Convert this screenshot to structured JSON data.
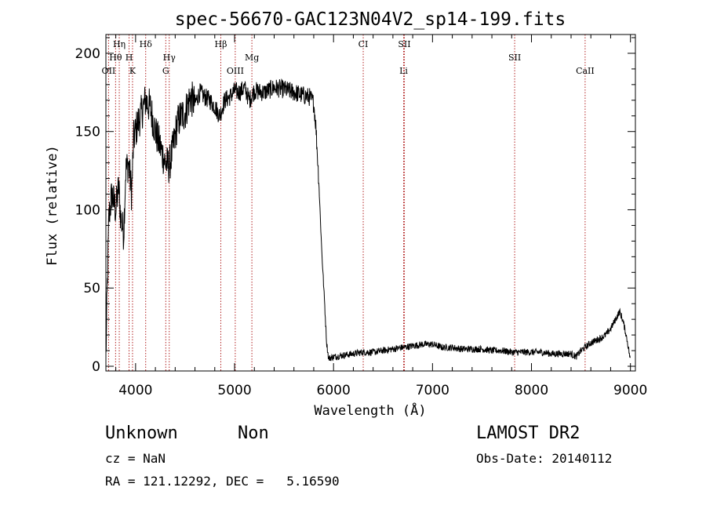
{
  "chart_data": {
    "type": "line",
    "title": "spec-56670-GAC123N04V2_sp14-199.fits",
    "xlabel": "Wavelength (Å)",
    "ylabel": "Flux (relative)",
    "xlim": [
      3700,
      9050
    ],
    "ylim": [
      -3,
      212
    ],
    "x_ticks": [
      4000,
      5000,
      6000,
      7000,
      8000,
      9000
    ],
    "y_ticks": [
      0,
      50,
      100,
      150,
      200
    ],
    "grid": false,
    "line_color": "#000000",
    "marker_color": "#b22222",
    "spectrum_anchors": [
      [
        3700,
        5
      ],
      [
        3710,
        38
      ],
      [
        3730,
        95
      ],
      [
        3760,
        110
      ],
      [
        3800,
        100
      ],
      [
        3830,
        115
      ],
      [
        3850,
        95
      ],
      [
        3880,
        85
      ],
      [
        3900,
        125
      ],
      [
        3930,
        130
      ],
      [
        3960,
        110
      ],
      [
        3980,
        145
      ],
      [
        4020,
        155
      ],
      [
        4050,
        160
      ],
      [
        4100,
        170
      ],
      [
        4150,
        165
      ],
      [
        4200,
        150
      ],
      [
        4250,
        140
      ],
      [
        4300,
        130
      ],
      [
        4340,
        128
      ],
      [
        4380,
        140
      ],
      [
        4420,
        155
      ],
      [
        4460,
        160
      ],
      [
        4500,
        162
      ],
      [
        4550,
        172
      ],
      [
        4600,
        168
      ],
      [
        4650,
        175
      ],
      [
        4700,
        172
      ],
      [
        4750,
        170
      ],
      [
        4800,
        166
      ],
      [
        4850,
        160
      ],
      [
        4900,
        170
      ],
      [
        4950,
        172
      ],
      [
        5000,
        176
      ],
      [
        5050,
        175
      ],
      [
        5100,
        178
      ],
      [
        5150,
        170
      ],
      [
        5200,
        176
      ],
      [
        5300,
        175
      ],
      [
        5400,
        178
      ],
      [
        5500,
        177
      ],
      [
        5600,
        175
      ],
      [
        5700,
        173
      ],
      [
        5760,
        172
      ],
      [
        5800,
        168
      ],
      [
        5820,
        155
      ],
      [
        5850,
        120
      ],
      [
        5880,
        75
      ],
      [
        5910,
        40
      ],
      [
        5930,
        15
      ],
      [
        5950,
        5
      ],
      [
        6000,
        6
      ],
      [
        6100,
        7
      ],
      [
        6200,
        8
      ],
      [
        6300,
        9
      ],
      [
        6400,
        9
      ],
      [
        6500,
        10
      ],
      [
        6600,
        11
      ],
      [
        6700,
        12
      ],
      [
        6800,
        13
      ],
      [
        6900,
        14
      ],
      [
        7000,
        14
      ],
      [
        7100,
        12
      ],
      [
        7200,
        12
      ],
      [
        7300,
        11
      ],
      [
        7400,
        11
      ],
      [
        7500,
        11
      ],
      [
        7600,
        10
      ],
      [
        7700,
        10
      ],
      [
        7800,
        9
      ],
      [
        7900,
        9
      ],
      [
        8000,
        9
      ],
      [
        8100,
        9
      ],
      [
        8200,
        8
      ],
      [
        8300,
        8
      ],
      [
        8400,
        8
      ],
      [
        8450,
        6
      ],
      [
        8500,
        10
      ],
      [
        8600,
        15
      ],
      [
        8700,
        18
      ],
      [
        8750,
        20
      ],
      [
        8800,
        24
      ],
      [
        8850,
        30
      ],
      [
        8890,
        35
      ],
      [
        8920,
        30
      ],
      [
        8950,
        22
      ],
      [
        8980,
        12
      ],
      [
        9000,
        3
      ]
    ],
    "lines": [
      {
        "label": "OII",
        "wavelength": 3727,
        "row": 3
      },
      {
        "label": "Hθ",
        "wavelength": 3798,
        "row": 2
      },
      {
        "label": "Hη",
        "wavelength": 3835,
        "row": 1
      },
      {
        "label": "H",
        "wavelength": 3934,
        "row": 2
      },
      {
        "label": "K",
        "wavelength": 3969,
        "row": 3
      },
      {
        "label": "Hδ",
        "wavelength": 4102,
        "row": 1
      },
      {
        "label": "Hγ",
        "wavelength": 4340,
        "row": 2
      },
      {
        "label": "G",
        "wavelength": 4305,
        "row": 3
      },
      {
        "label": "Hβ",
        "wavelength": 4861,
        "row": 1
      },
      {
        "label": "OIII",
        "wavelength": 5007,
        "row": 3
      },
      {
        "label": "Mg",
        "wavelength": 5175,
        "row": 2
      },
      {
        "label": "CI",
        "wavelength": 6300,
        "row": 1
      },
      {
        "label": "SII",
        "wavelength": 6716,
        "row": 1
      },
      {
        "label": "Li",
        "wavelength": 6708,
        "row": 3
      },
      {
        "label": "SII",
        "wavelength": 7830,
        "row": 2
      },
      {
        "label": "CaII",
        "wavelength": 8542,
        "row": 3
      }
    ]
  },
  "info": {
    "class": "Unknown",
    "subclass": "Non",
    "survey": "LAMOST DR2",
    "cz": "cz = NaN",
    "obs_date": "Obs-Date: 20140112",
    "coords": "RA = 121.12292, DEC =   5.16590"
  }
}
